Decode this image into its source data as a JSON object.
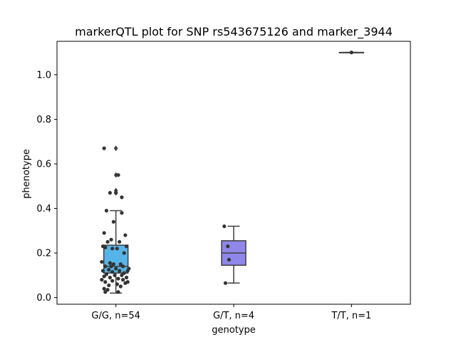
{
  "chart_data": {
    "type": "box",
    "title": "markerQTL plot for SNP rs543675126 and marker_3944",
    "xlabel": "genotype",
    "ylabel": "phenotype",
    "ylim": [
      -0.03,
      1.15
    ],
    "yticks": [
      "0.0",
      "0.2",
      "0.4",
      "0.6",
      "0.8",
      "1.0"
    ],
    "ytick_values": [
      0.0,
      0.2,
      0.4,
      0.6,
      0.8,
      1.0
    ],
    "categories": [
      "G/G, n=54",
      "G/T, n=4",
      "T/T, n=1"
    ],
    "box_colors": [
      "#56b4e9",
      "#8f87ea",
      "#e0e0e0"
    ],
    "boxes": [
      {
        "q1": 0.11,
        "median": 0.14,
        "q3": 0.235,
        "whisker_low": 0.02,
        "whisker_high": 0.39,
        "outliers": [
          0.47,
          0.48,
          0.55,
          0.67
        ]
      },
      {
        "q1": 0.145,
        "median": 0.2,
        "q3": 0.255,
        "whisker_low": 0.065,
        "whisker_high": 0.32,
        "outliers": []
      },
      {
        "q1": 1.1,
        "median": 1.1,
        "q3": 1.1,
        "whisker_low": 1.1,
        "whisker_high": 1.1,
        "outliers": []
      }
    ],
    "points": [
      [
        -0.1,
        0.67
      ],
      [
        0.02,
        0.55
      ],
      [
        -0.05,
        0.47
      ],
      [
        0.05,
        0.45
      ],
      [
        0.0,
        0.47
      ],
      [
        -0.08,
        0.39
      ],
      [
        0.05,
        0.38
      ],
      [
        -0.02,
        0.34
      ],
      [
        -0.1,
        0.29
      ],
      [
        0.08,
        0.28
      ],
      [
        -0.04,
        0.26
      ],
      [
        -0.07,
        0.25
      ],
      [
        0.03,
        0.25
      ],
      [
        -0.11,
        0.23
      ],
      [
        0.09,
        0.23
      ],
      [
        -0.09,
        0.225
      ],
      [
        0.01,
        0.22
      ],
      [
        -0.03,
        0.22
      ],
      [
        0.07,
        0.2
      ],
      [
        -0.12,
        0.16
      ],
      [
        -0.05,
        0.155
      ],
      [
        0.04,
        0.15
      ],
      [
        -0.02,
        0.15
      ],
      [
        0.06,
        0.14
      ],
      [
        -0.09,
        0.14
      ],
      [
        0.0,
        0.13
      ],
      [
        -0.06,
        0.125
      ],
      [
        0.1,
        0.12
      ],
      [
        -0.11,
        0.12
      ],
      [
        0.03,
        0.12
      ],
      [
        -0.03,
        0.115
      ],
      [
        0.07,
        0.11
      ],
      [
        -0.08,
        0.105
      ],
      [
        0.05,
        0.1
      ],
      [
        -0.01,
        0.1
      ],
      [
        -0.1,
        0.095
      ],
      [
        0.09,
        0.09
      ],
      [
        -0.05,
        0.09
      ],
      [
        0.02,
        0.085
      ],
      [
        -0.12,
        0.08
      ],
      [
        0.06,
        0.08
      ],
      [
        -0.03,
        0.075
      ],
      [
        0.1,
        0.07
      ],
      [
        -0.09,
        0.07
      ],
      [
        0.08,
        0.065
      ],
      [
        0.01,
        0.06
      ],
      [
        -0.06,
        0.055
      ],
      [
        0.04,
        0.05
      ],
      [
        -0.1,
        0.04
      ],
      [
        -0.07,
        0.035
      ],
      [
        -0.09,
        0.025
      ],
      [
        0.02,
        0.025
      ],
      [
        -0.04,
        0.14
      ],
      [
        0.11,
        0.13
      ],
      [
        0.92,
        0.32
      ],
      [
        0.95,
        0.23
      ],
      [
        0.96,
        0.17
      ],
      [
        0.93,
        0.065
      ],
      [
        2.0,
        1.1
      ]
    ]
  }
}
